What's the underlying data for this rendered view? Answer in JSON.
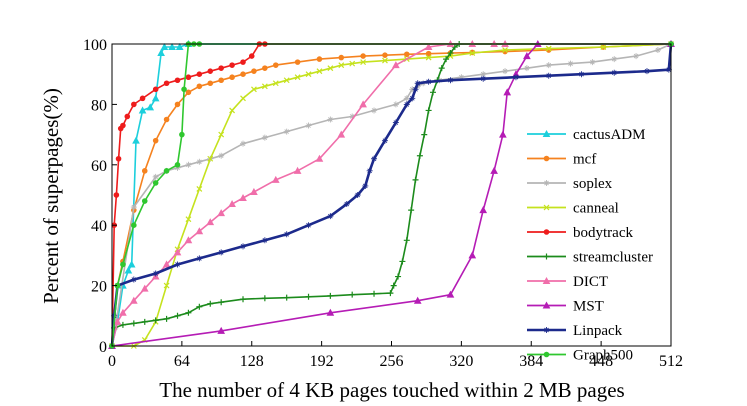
{
  "chart_data": {
    "type": "line",
    "title": "",
    "xlabel": "The number of 4 KB pages touched within 2 MB pages",
    "ylabel": "Percent of superpages(%)",
    "xlim": [
      0,
      512
    ],
    "ylim": [
      0,
      100
    ],
    "xticks": [
      0,
      64,
      128,
      192,
      256,
      320,
      384,
      448,
      512
    ],
    "yticks": [
      0,
      20,
      40,
      60,
      80,
      100
    ],
    "grid": false,
    "legend_position": "right",
    "series": [
      {
        "name": "cactusADM",
        "color": "#1ccfdc",
        "x": [
          0,
          5,
          10,
          15,
          18,
          22,
          28,
          35,
          40,
          45,
          48,
          55,
          62,
          70,
          512
        ],
        "y": [
          0,
          8,
          20,
          25,
          27,
          68,
          78,
          79,
          82,
          97,
          99,
          99,
          99,
          100,
          100
        ]
      },
      {
        "name": "mcf",
        "color": "#f5821f",
        "x": [
          0,
          5,
          10,
          20,
          30,
          40,
          50,
          60,
          70,
          80,
          90,
          100,
          110,
          120,
          130,
          140,
          150,
          170,
          190,
          210,
          230,
          250,
          270,
          290,
          310,
          330,
          360,
          400,
          450,
          512
        ],
        "y": [
          0,
          20,
          28,
          45,
          58,
          68,
          75,
          80,
          84,
          86,
          87,
          88,
          89,
          90,
          91,
          92,
          93,
          94,
          95,
          95.5,
          96,
          96.3,
          96.6,
          96.8,
          97,
          97.2,
          97.5,
          98,
          99,
          100
        ]
      },
      {
        "name": "soplex",
        "color": "#b5b5b5",
        "x": [
          0,
          3,
          20,
          40,
          50,
          60,
          70,
          80,
          90,
          100,
          120,
          140,
          160,
          180,
          200,
          220,
          240,
          260,
          270,
          275,
          280,
          285,
          300,
          320,
          340,
          360,
          380,
          400,
          420,
          440,
          460,
          480,
          500,
          512
        ],
        "y": [
          0,
          6,
          46,
          56,
          58,
          59,
          60,
          61,
          62,
          63,
          67,
          69,
          71,
          73,
          75,
          76,
          78,
          80,
          82,
          85,
          86,
          87,
          88,
          89,
          90,
          91,
          92,
          93,
          93.5,
          94,
          95,
          96,
          98,
          100
        ]
      },
      {
        "name": "canneal",
        "color": "#c5e21e",
        "x": [
          0,
          20,
          30,
          40,
          50,
          60,
          70,
          80,
          90,
          100,
          110,
          120,
          130,
          140,
          150,
          160,
          170,
          180,
          190,
          200,
          210,
          220,
          230,
          250,
          270,
          290,
          310,
          330,
          360,
          400,
          450,
          512
        ],
        "y": [
          0,
          0,
          2,
          8,
          20,
          32,
          42,
          52,
          62,
          70,
          78,
          82,
          85,
          86,
          87,
          88,
          89,
          90,
          91,
          92,
          93,
          93.5,
          94,
          94.5,
          95,
          95.5,
          96,
          97,
          98,
          98.5,
          99,
          100
        ]
      },
      {
        "name": "bodytrack",
        "color": "#ee1c1c",
        "x": [
          0,
          2,
          4,
          6,
          8,
          10,
          14,
          20,
          28,
          40,
          50,
          60,
          70,
          80,
          90,
          100,
          110,
          120,
          128,
          135,
          140,
          512
        ],
        "y": [
          0,
          40,
          50,
          62,
          72,
          73,
          76,
          80,
          82,
          85,
          87,
          88,
          89,
          90,
          91,
          92,
          93,
          94,
          96,
          100,
          100,
          100
        ]
      },
      {
        "name": "streamcluster",
        "color": "#1c8b1c",
        "x": [
          0,
          2,
          10,
          20,
          30,
          40,
          50,
          60,
          70,
          80,
          90,
          100,
          120,
          140,
          160,
          180,
          200,
          220,
          240,
          255,
          258,
          262,
          266,
          270,
          274,
          278,
          282,
          286,
          290,
          294,
          298,
          302,
          306,
          310,
          314,
          318,
          512
        ],
        "y": [
          0,
          6,
          7,
          7.5,
          8,
          8.5,
          9,
          10,
          11,
          13,
          14,
          14.5,
          15.5,
          15.8,
          16,
          16.3,
          16.6,
          17,
          17.3,
          17.5,
          20,
          23,
          28,
          35,
          45,
          55,
          63,
          70,
          78,
          84,
          88,
          92,
          95,
          97,
          99,
          100,
          100
        ]
      },
      {
        "name": "DICT",
        "color": "#f06eaa",
        "x": [
          0,
          5,
          10,
          20,
          30,
          40,
          50,
          60,
          70,
          80,
          90,
          100,
          110,
          120,
          130,
          150,
          170,
          190,
          210,
          230,
          260,
          290,
          310,
          330,
          350,
          360,
          512
        ],
        "y": [
          0,
          8,
          11,
          15,
          19,
          23,
          27,
          31,
          35,
          38,
          41,
          44,
          47,
          49,
          51,
          55,
          58,
          62,
          70,
          80,
          93,
          99,
          100,
          100,
          100,
          100,
          100
        ]
      },
      {
        "name": "MST",
        "color": "#b51cb5",
        "x": [
          0,
          100,
          200,
          280,
          310,
          330,
          340,
          350,
          358,
          362,
          370,
          380,
          390,
          512
        ],
        "y": [
          0,
          5,
          11,
          15,
          17,
          30,
          45,
          58,
          70,
          84,
          90,
          96,
          100,
          100
        ]
      },
      {
        "name": "Linpack",
        "color": "#1c2a8c",
        "x": [
          0,
          2,
          5,
          20,
          40,
          60,
          80,
          100,
          120,
          140,
          160,
          180,
          200,
          215,
          225,
          232,
          236,
          240,
          250,
          260,
          270,
          275,
          278,
          280,
          290,
          310,
          340,
          370,
          400,
          430,
          460,
          490,
          510,
          512
        ],
        "y": [
          0,
          10,
          20,
          22,
          24,
          27,
          29,
          31,
          33,
          35,
          37,
          40,
          43,
          47,
          50,
          53,
          58,
          62,
          68,
          74,
          80,
          82,
          85,
          87,
          87.5,
          88,
          88.5,
          89,
          89.5,
          90,
          90.5,
          91,
          91.5,
          100
        ]
      },
      {
        "name": "Graph500",
        "color": "#2fc72f",
        "x": [
          0,
          5,
          10,
          20,
          30,
          40,
          50,
          60,
          64,
          66,
          70,
          75,
          80,
          512
        ],
        "y": [
          0,
          20,
          27,
          40,
          48,
          54,
          58,
          60,
          70,
          85,
          100,
          100,
          100,
          100
        ]
      }
    ]
  }
}
